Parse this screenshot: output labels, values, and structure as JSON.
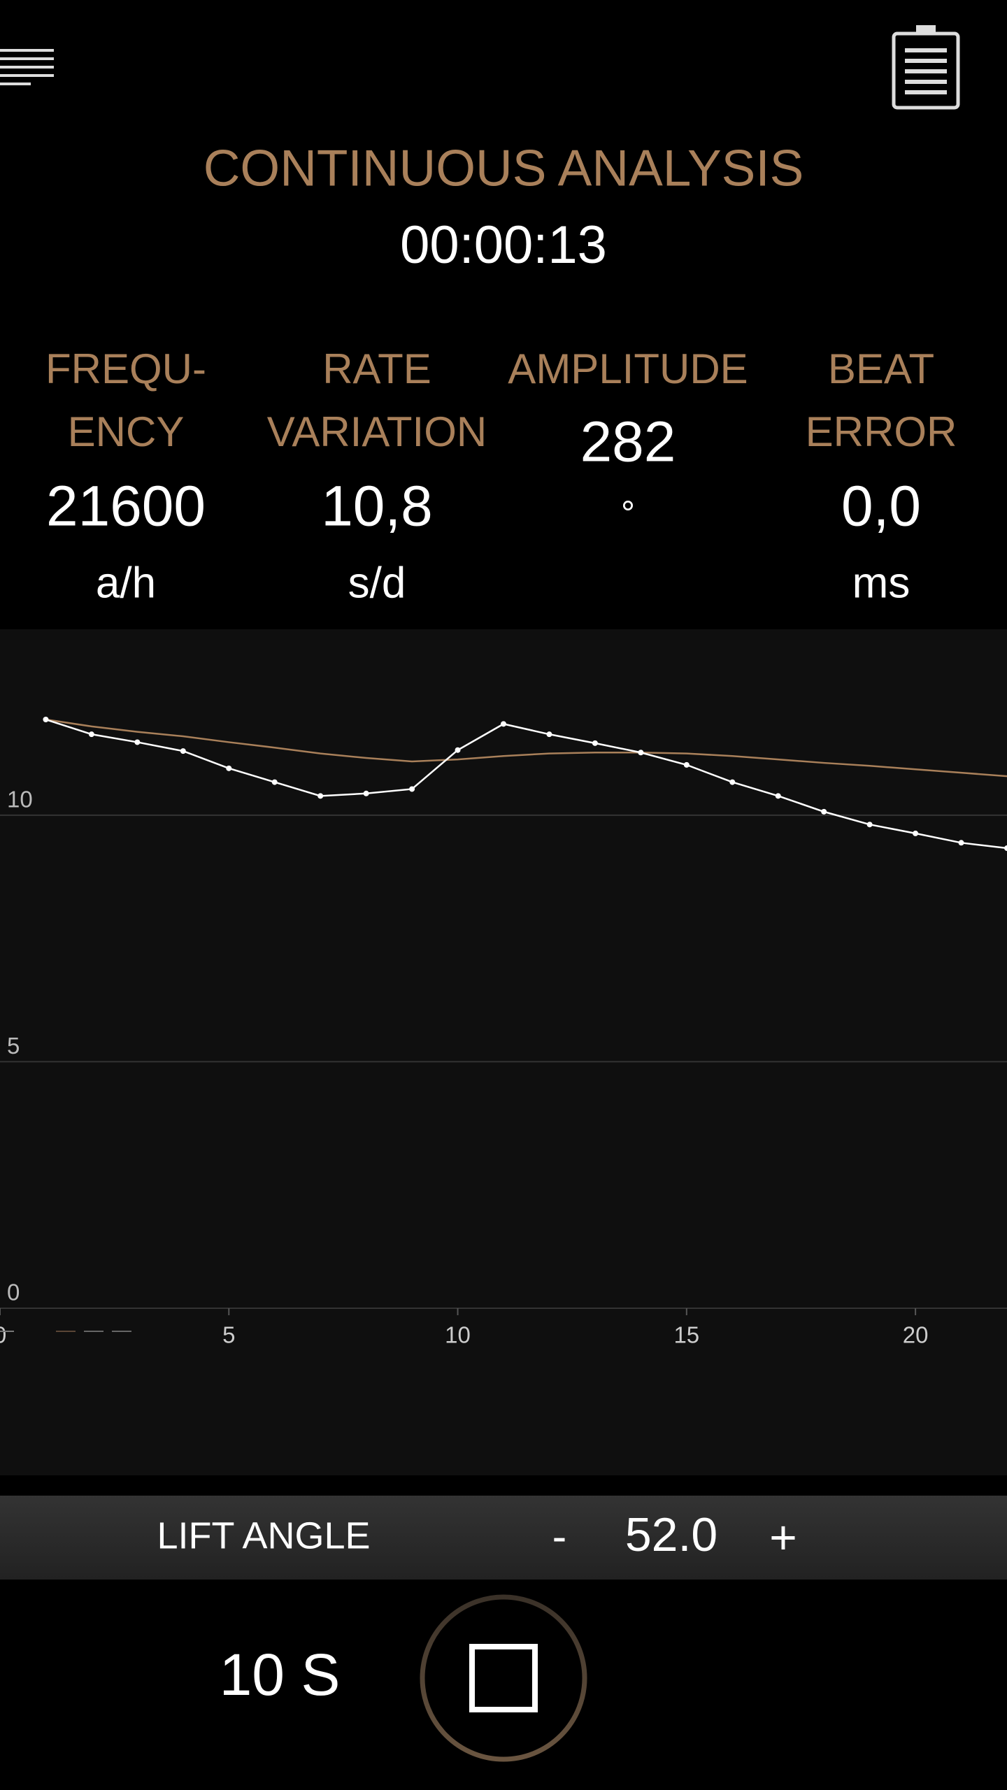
{
  "header": {
    "title": "CONTINUOUS ANALYSIS",
    "timer": "00:00:13"
  },
  "metrics": [
    {
      "label_lines": [
        "FREQU-",
        "ENCY"
      ],
      "value": "21600",
      "unit": "a/h"
    },
    {
      "label_lines": [
        "RATE",
        "VARIATION"
      ],
      "value": "10,8",
      "unit": "s/d"
    },
    {
      "label_lines": [
        "AMPLITUDE"
      ],
      "value": "282",
      "unit": "°"
    },
    {
      "label_lines": [
        "BEAT",
        "ERROR"
      ],
      "value": "0,0",
      "unit": "ms"
    }
  ],
  "chart_data": {
    "type": "line",
    "x": [
      1,
      2,
      3,
      4,
      5,
      6,
      7,
      8,
      9,
      10,
      11,
      12,
      13,
      14,
      15,
      16,
      17,
      18,
      19,
      20,
      21,
      22
    ],
    "series": [
      {
        "color": "#ffffff",
        "markers": true,
        "values": [
          11.94,
          11.64,
          11.48,
          11.3,
          10.95,
          10.67,
          10.39,
          10.44,
          10.53,
          11.32,
          11.85,
          11.64,
          11.46,
          11.27,
          11.02,
          10.67,
          10.39,
          10.07,
          9.81,
          9.63,
          9.44,
          9.33
        ]
      },
      {
        "color": "#a9805a",
        "markers": false,
        "values": [
          11.94,
          11.8,
          11.69,
          11.6,
          11.48,
          11.37,
          11.25,
          11.16,
          11.09,
          11.13,
          11.2,
          11.25,
          11.27,
          11.27,
          11.25,
          11.2,
          11.13,
          11.06,
          11.0,
          10.93,
          10.86,
          10.79
        ]
      }
    ],
    "xlim": [
      0,
      22
    ],
    "xticks": [
      0,
      5,
      10,
      15,
      20
    ],
    "ylim": [
      0,
      13.5
    ],
    "yticks": [
      0,
      5,
      10
    ],
    "grid": true
  },
  "controls": {
    "lift_angle_label": "LIFT ANGLE",
    "minus": "-",
    "lift_angle_value": "52.0",
    "plus": "+",
    "interval": "10 S"
  }
}
